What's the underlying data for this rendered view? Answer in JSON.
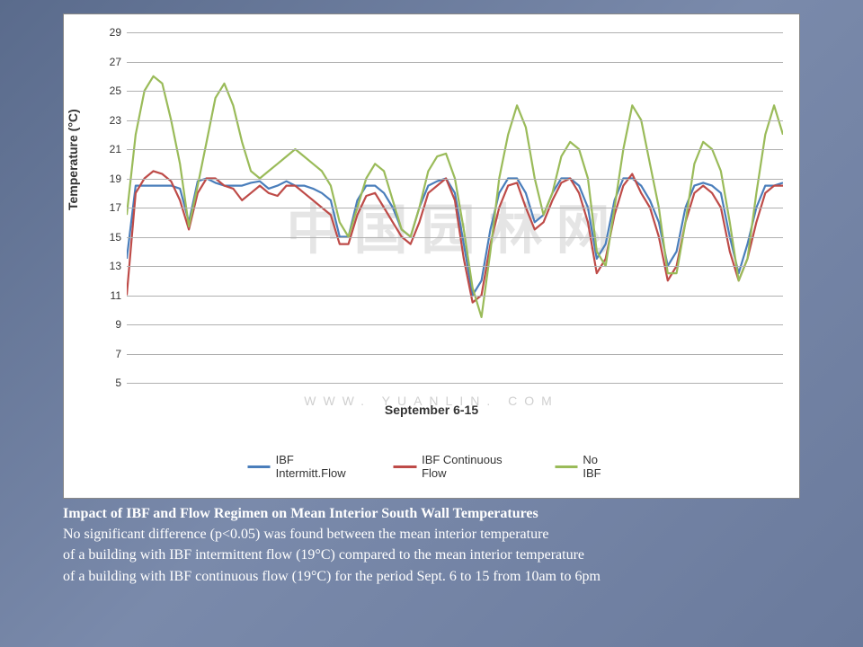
{
  "chart": {
    "type": "line",
    "ylabel": "Temperature (°C)",
    "xlabel": "September 6-15",
    "ylim": [
      5,
      29
    ],
    "yticks": [
      5,
      7,
      9,
      11,
      13,
      15,
      17,
      19,
      21,
      23,
      25,
      27,
      29
    ],
    "label_fontsize": 14,
    "tick_fontsize": 12,
    "background_color": "#ffffff",
    "grid_color": "#b0b0b0",
    "line_width": 2.2,
    "series": [
      {
        "name": "IBF Intermitt.Flow",
        "color": "#4a7ebb",
        "values": [
          13.5,
          18.5,
          18.5,
          18.5,
          18.5,
          18.5,
          18.3,
          16.0,
          18.8,
          19.0,
          18.7,
          18.5,
          18.5,
          18.5,
          18.7,
          18.8,
          18.3,
          18.5,
          18.8,
          18.5,
          18.5,
          18.3,
          18.0,
          17.5,
          15.0,
          15.0,
          17.5,
          18.5,
          18.5,
          18.0,
          17.0,
          15.5,
          15.0,
          17.0,
          18.5,
          18.8,
          19.0,
          18.0,
          14.5,
          11.0,
          12.0,
          15.5,
          18.0,
          19.0,
          19.0,
          18.0,
          16.0,
          16.5,
          18.0,
          19.0,
          19.0,
          18.5,
          17.0,
          13.5,
          14.5,
          17.5,
          19.0,
          19.0,
          18.5,
          17.5,
          16.0,
          13.0,
          14.0,
          17.0,
          18.5,
          18.7,
          18.5,
          18.0,
          15.0,
          12.5,
          14.5,
          17.0,
          18.5,
          18.5,
          18.7
        ]
      },
      {
        "name": "IBF Continuous Flow",
        "color": "#be4b48",
        "values": [
          11.0,
          18.0,
          19.0,
          19.5,
          19.3,
          18.8,
          17.5,
          15.5,
          18.0,
          19.0,
          19.0,
          18.5,
          18.3,
          17.5,
          18.0,
          18.5,
          18.0,
          17.8,
          18.5,
          18.5,
          18.0,
          17.5,
          17.0,
          16.5,
          14.5,
          14.5,
          16.5,
          17.8,
          18.0,
          17.0,
          16.0,
          15.0,
          14.5,
          16.0,
          18.0,
          18.5,
          19.0,
          17.5,
          13.5,
          10.5,
          11.0,
          14.5,
          17.0,
          18.5,
          18.7,
          17.0,
          15.5,
          16.0,
          17.5,
          18.7,
          19.0,
          18.0,
          16.0,
          12.5,
          13.5,
          16.5,
          18.5,
          19.3,
          18.0,
          17.0,
          15.0,
          12.0,
          13.0,
          16.0,
          18.0,
          18.5,
          18.0,
          17.0,
          14.0,
          12.0,
          13.5,
          16.0,
          18.0,
          18.5,
          18.5
        ]
      },
      {
        "name": "No IBF",
        "color": "#9abb59",
        "values": [
          16.5,
          22.0,
          25.0,
          26.0,
          25.5,
          23.0,
          20.0,
          15.7,
          18.5,
          21.5,
          24.5,
          25.5,
          24.0,
          21.5,
          19.5,
          19.0,
          19.5,
          20.0,
          20.5,
          21.0,
          20.5,
          20.0,
          19.5,
          18.5,
          16.0,
          15.0,
          17.0,
          19.0,
          20.0,
          19.5,
          17.5,
          15.5,
          15.0,
          17.0,
          19.5,
          20.5,
          20.7,
          19.0,
          15.5,
          11.5,
          9.5,
          14.0,
          19.0,
          22.0,
          24.0,
          22.5,
          19.0,
          16.5,
          18.0,
          20.5,
          21.5,
          21.0,
          19.0,
          14.0,
          13.0,
          17.0,
          21.0,
          24.0,
          23.0,
          20.0,
          17.0,
          12.5,
          12.5,
          16.0,
          20.0,
          21.5,
          21.0,
          19.5,
          16.0,
          12.0,
          13.5,
          18.0,
          22.0,
          24.0,
          22.0
        ]
      }
    ]
  },
  "watermark": {
    "text": "中国园林网",
    "url": "WWW. YUANLIN. COM"
  },
  "caption": {
    "title": "Impact of IBF and Flow Regimen on Mean Interior South Wall Temperatures",
    "line1": "No significant difference (p<0.05) was found between the mean interior temperature",
    "line2": "of a building with IBF intermittent flow (19°C) compared to the mean interior temperature",
    "line3": "of a building with IBF continuous flow (19°C) for the period Sept. 6 to 15 from 10am to 6pm"
  },
  "slide": {
    "bg_gradient": [
      "#5a6b8c",
      "#7a8aab",
      "#6a7a9c"
    ]
  }
}
